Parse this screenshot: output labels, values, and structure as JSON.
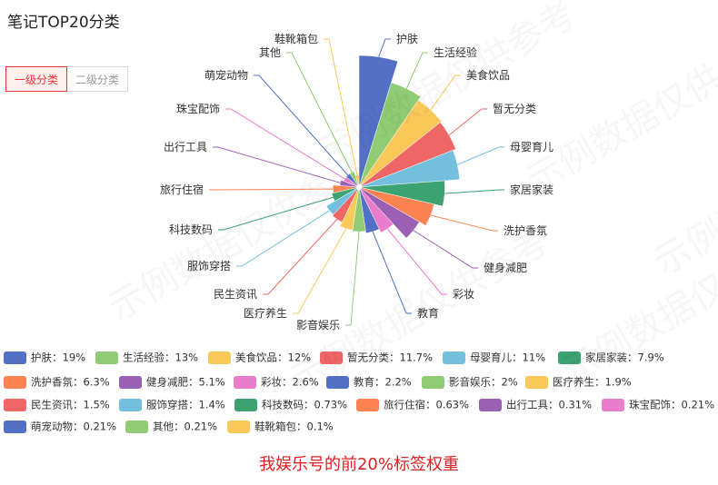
{
  "title": "笔记TOP20分类",
  "tabs": [
    {
      "label": "一级分类",
      "active": true
    },
    {
      "label": "二级分类",
      "active": false
    }
  ],
  "watermark": "示例数据仅供参考",
  "caption": "我娱乐号的前20%标签权重",
  "chart_data": {
    "type": "pie",
    "rose": true,
    "title": "",
    "categories": [
      "护肤",
      "生活经验",
      "美食饮品",
      "暂无分类",
      "母婴育儿",
      "家居家装",
      "洗护香氛",
      "健身减肥",
      "彩妆",
      "教育",
      "影音娱乐",
      "医疗养生",
      "民生资讯",
      "服饰穿搭",
      "科技数码",
      "旅行住宿",
      "出行工具",
      "珠宝配饰",
      "萌宠动物",
      "其他",
      "鞋靴箱包"
    ],
    "values": [
      19,
      13,
      12,
      11.7,
      11,
      7.9,
      6.3,
      5.1,
      2.6,
      2.2,
      2,
      1.9,
      1.5,
      1.4,
      0.73,
      0.63,
      0.31,
      0.21,
      0.21,
      0.21,
      0.1
    ],
    "legend_labels": [
      "护肤：19%",
      "生活经验：13%",
      "美食饮品：12%",
      "暂无分类：11.7%",
      "母婴育儿：11%",
      "家居家装：7.9%",
      "洗护香氛：6.3%",
      "健身减肥：5.1%",
      "彩妆：2.6%",
      "教育：2.2%",
      "影音娱乐：2%",
      "医疗养生：1.9%",
      "民生资讯：1.5%",
      "服饰穿搭：1.4%",
      "科技数码：0.73%",
      "旅行住宿：0.63%",
      "出行工具：0.31%",
      "珠宝配饰：0.21%",
      "萌宠动物：0.21%",
      "其他：0.21%",
      "鞋靴箱包：0.1%"
    ],
    "colors": [
      "#5470c6",
      "#91cc75",
      "#fac858",
      "#ee6666",
      "#73c0de",
      "#3ba272",
      "#fc8452",
      "#9a60b4",
      "#ea7ccc",
      "#5470c6",
      "#91cc75",
      "#fac858",
      "#ee6666",
      "#73c0de",
      "#3ba272",
      "#fc8452",
      "#9a60b4",
      "#ea7ccc",
      "#5470c6",
      "#91cc75",
      "#fac858"
    ],
    "legend_position": "bottom",
    "unit": "%"
  }
}
